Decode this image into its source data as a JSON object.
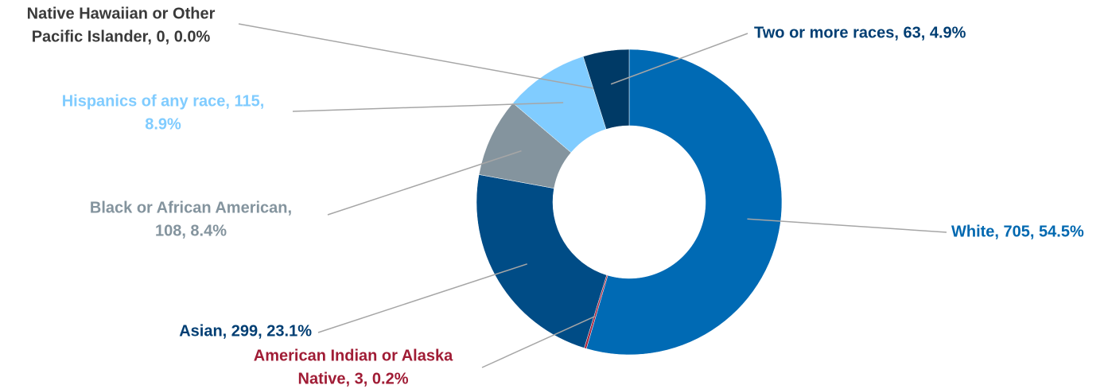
{
  "chart_data": {
    "type": "donut",
    "values": [
      705,
      3,
      299,
      108,
      115,
      0,
      63
    ],
    "value_labels": [
      [
        "White, 705, 54.5%"
      ],
      [
        "American Indian or Alaska",
        "Native, 3, 0.2%"
      ],
      [
        "Asian, 299, 23.1%"
      ],
      [
        "Black or African American,",
        "108, 8.4%"
      ],
      [
        "Hispanics of any race, 115,",
        "8.9%"
      ],
      [
        "Native Hawaiian or Other",
        "Pacific Islander, 0, 0.0%"
      ],
      [
        "Two or more races, 63, 4.9%"
      ]
    ],
    "colors": [
      "#006ab4",
      "#a6213a",
      "#004c86",
      "#84949e",
      "#80ccff",
      "#3a3a3a",
      "#003a66"
    ],
    "label_colors": [
      "#0068b0",
      "#a01c35",
      "#003e73",
      "#84949e",
      "#80ccff",
      "#3a3a3a",
      "#003e73"
    ]
  }
}
